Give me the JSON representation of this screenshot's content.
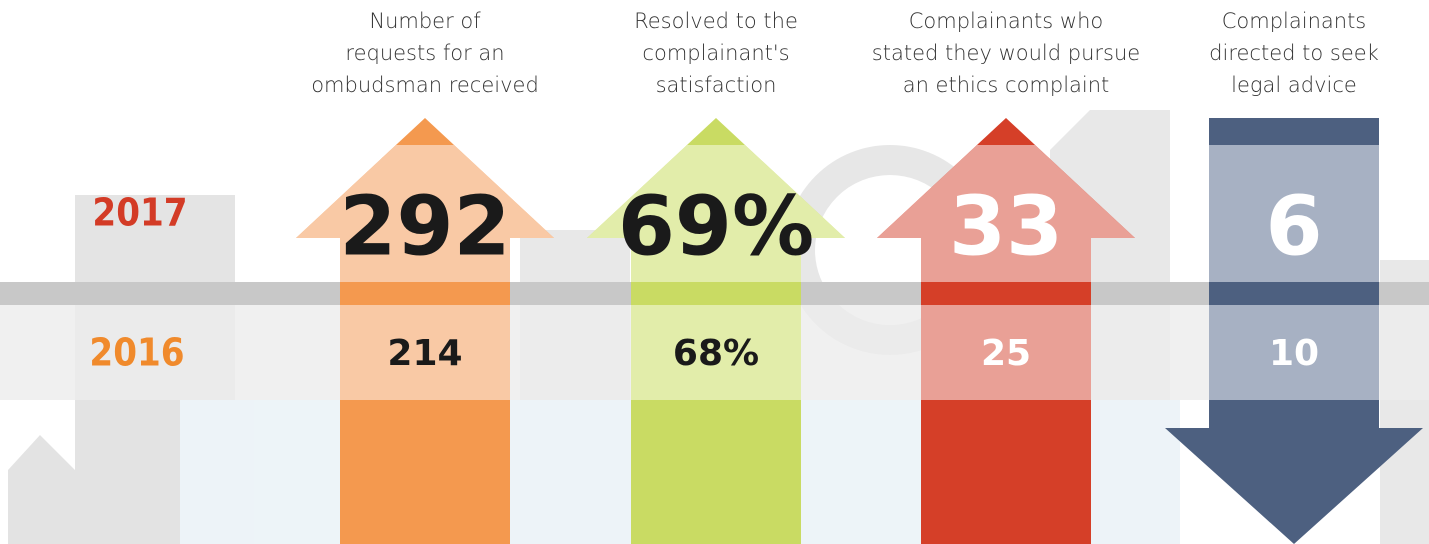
{
  "years": [
    "2017",
    "2016"
  ],
  "columns": [
    {
      "label_lines": [
        "Number of",
        "requests for an",
        "ombudsman received"
      ],
      "value_2017": "292",
      "value_2016": "214"
    },
    {
      "label_lines": [
        "Resolved to the",
        "complainant's",
        "satisfaction"
      ],
      "value_2017": "69%",
      "value_2016": "68%"
    },
    {
      "label_lines": [
        "Complainants who",
        "stated they would pursue",
        "an ethics complaint"
      ],
      "value_2017": "33",
      "value_2016": "25"
    },
    {
      "label_lines": [
        "Complainants",
        "directed to seek",
        "legal advice"
      ],
      "value_2017": "6",
      "value_2016": "10"
    }
  ]
}
